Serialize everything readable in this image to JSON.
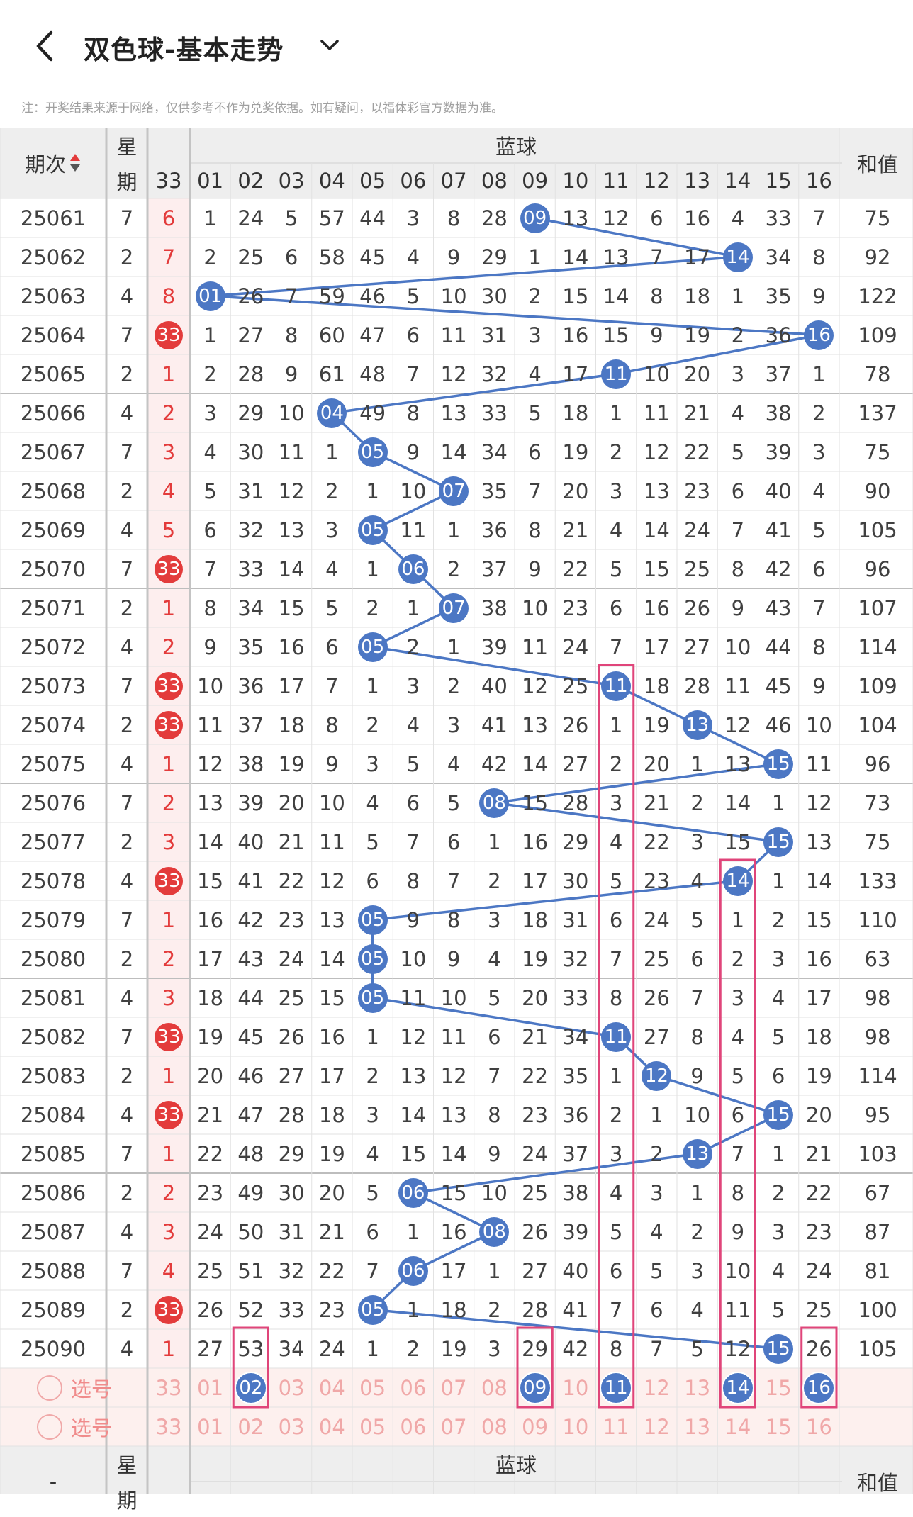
{
  "app": {
    "title": "双色球-基本走势",
    "note": "注：开奖结果来源于网络，仅供参考不作为兑奖依据。如有疑问，以福体彩官方数据为准。"
  },
  "table": {
    "header": {
      "period": "期次",
      "week_top": "星",
      "week_bottom": "期",
      "group": "蓝球",
      "red_col": "33",
      "cols": [
        "01",
        "02",
        "03",
        "04",
        "05",
        "06",
        "07",
        "08",
        "09",
        "10",
        "11",
        "12",
        "13",
        "14",
        "15",
        "16"
      ],
      "sum": "和值"
    },
    "rows": [
      {
        "p": "25061",
        "w": "7",
        "r": "6",
        "rball": false,
        "vals": [
          "1",
          "24",
          "5",
          "57",
          "44",
          "3",
          "8",
          "28",
          "09",
          "13",
          "12",
          "6",
          "16",
          "4",
          "33",
          "7"
        ],
        "hit": 9,
        "sum": "75"
      },
      {
        "p": "25062",
        "w": "2",
        "r": "7",
        "rball": false,
        "vals": [
          "2",
          "25",
          "6",
          "58",
          "45",
          "4",
          "9",
          "29",
          "1",
          "14",
          "13",
          "7",
          "17",
          "14",
          "34",
          "8"
        ],
        "hit": 14,
        "sum": "92"
      },
      {
        "p": "25063",
        "w": "4",
        "r": "8",
        "rball": false,
        "vals": [
          "01",
          "26",
          "7",
          "59",
          "46",
          "5",
          "10",
          "30",
          "2",
          "15",
          "14",
          "8",
          "18",
          "1",
          "35",
          "9"
        ],
        "hit": 1,
        "sum": "122"
      },
      {
        "p": "25064",
        "w": "7",
        "r": "33",
        "rball": true,
        "vals": [
          "1",
          "27",
          "8",
          "60",
          "47",
          "6",
          "11",
          "31",
          "3",
          "16",
          "15",
          "9",
          "19",
          "2",
          "36",
          "16"
        ],
        "hit": 16,
        "sum": "109"
      },
      {
        "p": "25065",
        "w": "2",
        "r": "1",
        "rball": false,
        "vals": [
          "2",
          "28",
          "9",
          "61",
          "48",
          "7",
          "12",
          "32",
          "4",
          "17",
          "11",
          "10",
          "20",
          "3",
          "37",
          "1"
        ],
        "hit": 11,
        "sum": "78"
      },
      {
        "p": "25066",
        "w": "4",
        "r": "2",
        "rball": false,
        "vals": [
          "3",
          "29",
          "10",
          "04",
          "49",
          "8",
          "13",
          "33",
          "5",
          "18",
          "1",
          "11",
          "21",
          "4",
          "38",
          "2"
        ],
        "hit": 4,
        "sum": "137"
      },
      {
        "p": "25067",
        "w": "7",
        "r": "3",
        "rball": false,
        "vals": [
          "4",
          "30",
          "11",
          "1",
          "05",
          "9",
          "14",
          "34",
          "6",
          "19",
          "2",
          "12",
          "22",
          "5",
          "39",
          "3"
        ],
        "hit": 5,
        "sum": "75"
      },
      {
        "p": "25068",
        "w": "2",
        "r": "4",
        "rball": false,
        "vals": [
          "5",
          "31",
          "12",
          "2",
          "1",
          "10",
          "07",
          "35",
          "7",
          "20",
          "3",
          "13",
          "23",
          "6",
          "40",
          "4"
        ],
        "hit": 7,
        "sum": "90"
      },
      {
        "p": "25069",
        "w": "4",
        "r": "5",
        "rball": false,
        "vals": [
          "6",
          "32",
          "13",
          "3",
          "05",
          "11",
          "1",
          "36",
          "8",
          "21",
          "4",
          "14",
          "24",
          "7",
          "41",
          "5"
        ],
        "hit": 5,
        "sum": "105"
      },
      {
        "p": "25070",
        "w": "7",
        "r": "33",
        "rball": true,
        "vals": [
          "7",
          "33",
          "14",
          "4",
          "1",
          "06",
          "2",
          "37",
          "9",
          "22",
          "5",
          "15",
          "25",
          "8",
          "42",
          "6"
        ],
        "hit": 6,
        "sum": "96"
      },
      {
        "p": "25071",
        "w": "2",
        "r": "1",
        "rball": false,
        "vals": [
          "8",
          "34",
          "15",
          "5",
          "2",
          "1",
          "07",
          "38",
          "10",
          "23",
          "6",
          "16",
          "26",
          "9",
          "43",
          "7"
        ],
        "hit": 7,
        "sum": "107"
      },
      {
        "p": "25072",
        "w": "4",
        "r": "2",
        "rball": false,
        "vals": [
          "9",
          "35",
          "16",
          "6",
          "05",
          "2",
          "1",
          "39",
          "11",
          "24",
          "7",
          "17",
          "27",
          "10",
          "44",
          "8"
        ],
        "hit": 5,
        "sum": "114"
      },
      {
        "p": "25073",
        "w": "7",
        "r": "33",
        "rball": true,
        "vals": [
          "10",
          "36",
          "17",
          "7",
          "1",
          "3",
          "2",
          "40",
          "12",
          "25",
          "11",
          "18",
          "28",
          "11",
          "45",
          "9"
        ],
        "hit": 11,
        "sum": "109"
      },
      {
        "p": "25074",
        "w": "2",
        "r": "33",
        "rball": true,
        "vals": [
          "11",
          "37",
          "18",
          "8",
          "2",
          "4",
          "3",
          "41",
          "13",
          "26",
          "1",
          "19",
          "13",
          "12",
          "46",
          "10"
        ],
        "hit": 13,
        "sum": "104"
      },
      {
        "p": "25075",
        "w": "4",
        "r": "1",
        "rball": false,
        "vals": [
          "12",
          "38",
          "19",
          "9",
          "3",
          "5",
          "4",
          "42",
          "14",
          "27",
          "2",
          "20",
          "1",
          "13",
          "15",
          "11"
        ],
        "hit": 15,
        "sum": "96"
      },
      {
        "p": "25076",
        "w": "7",
        "r": "2",
        "rball": false,
        "vals": [
          "13",
          "39",
          "20",
          "10",
          "4",
          "6",
          "5",
          "08",
          "15",
          "28",
          "3",
          "21",
          "2",
          "14",
          "1",
          "12"
        ],
        "hit": 8,
        "sum": "73"
      },
      {
        "p": "25077",
        "w": "2",
        "r": "3",
        "rball": false,
        "vals": [
          "14",
          "40",
          "21",
          "11",
          "5",
          "7",
          "6",
          "1",
          "16",
          "29",
          "4",
          "22",
          "3",
          "15",
          "15",
          "13"
        ],
        "hit": 15,
        "sum": "75"
      },
      {
        "p": "25078",
        "w": "4",
        "r": "33",
        "rball": true,
        "vals": [
          "15",
          "41",
          "22",
          "12",
          "6",
          "8",
          "7",
          "2",
          "17",
          "30",
          "5",
          "23",
          "4",
          "14",
          "1",
          "14"
        ],
        "hit": 14,
        "sum": "133"
      },
      {
        "p": "25079",
        "w": "7",
        "r": "1",
        "rball": false,
        "vals": [
          "16",
          "42",
          "23",
          "13",
          "05",
          "9",
          "8",
          "3",
          "18",
          "31",
          "6",
          "24",
          "5",
          "1",
          "2",
          "15"
        ],
        "hit": 5,
        "sum": "110"
      },
      {
        "p": "25080",
        "w": "2",
        "r": "2",
        "rball": false,
        "vals": [
          "17",
          "43",
          "24",
          "14",
          "05",
          "10",
          "9",
          "4",
          "19",
          "32",
          "7",
          "25",
          "6",
          "2",
          "3",
          "16"
        ],
        "hit": 5,
        "sum": "63"
      },
      {
        "p": "25081",
        "w": "4",
        "r": "3",
        "rball": false,
        "vals": [
          "18",
          "44",
          "25",
          "15",
          "05",
          "11",
          "10",
          "5",
          "20",
          "33",
          "8",
          "26",
          "7",
          "3",
          "4",
          "17"
        ],
        "hit": 5,
        "sum": "98"
      },
      {
        "p": "25082",
        "w": "7",
        "r": "33",
        "rball": true,
        "vals": [
          "19",
          "45",
          "26",
          "16",
          "1",
          "12",
          "11",
          "6",
          "21",
          "34",
          "11",
          "27",
          "8",
          "4",
          "5",
          "18"
        ],
        "hit": 11,
        "sum": "98"
      },
      {
        "p": "25083",
        "w": "2",
        "r": "1",
        "rball": false,
        "vals": [
          "20",
          "46",
          "27",
          "17",
          "2",
          "13",
          "12",
          "7",
          "22",
          "35",
          "1",
          "12",
          "9",
          "5",
          "6",
          "19"
        ],
        "hit": 12,
        "sum": "114"
      },
      {
        "p": "25084",
        "w": "4",
        "r": "33",
        "rball": true,
        "vals": [
          "21",
          "47",
          "28",
          "18",
          "3",
          "14",
          "13",
          "8",
          "23",
          "36",
          "2",
          "1",
          "10",
          "6",
          "15",
          "20"
        ],
        "hit": 15,
        "sum": "95"
      },
      {
        "p": "25085",
        "w": "7",
        "r": "1",
        "rball": false,
        "vals": [
          "22",
          "48",
          "29",
          "19",
          "4",
          "15",
          "14",
          "9",
          "24",
          "37",
          "3",
          "2",
          "13",
          "7",
          "1",
          "21"
        ],
        "hit": 13,
        "sum": "103"
      },
      {
        "p": "25086",
        "w": "2",
        "r": "2",
        "rball": false,
        "vals": [
          "23",
          "49",
          "30",
          "20",
          "5",
          "06",
          "15",
          "10",
          "25",
          "38",
          "4",
          "3",
          "1",
          "8",
          "2",
          "22"
        ],
        "hit": 6,
        "sum": "67"
      },
      {
        "p": "25087",
        "w": "4",
        "r": "3",
        "rball": false,
        "vals": [
          "24",
          "50",
          "31",
          "21",
          "6",
          "1",
          "16",
          "08",
          "26",
          "39",
          "5",
          "4",
          "2",
          "9",
          "3",
          "23"
        ],
        "hit": 8,
        "sum": "87"
      },
      {
        "p": "25088",
        "w": "7",
        "r": "4",
        "rball": false,
        "vals": [
          "25",
          "51",
          "32",
          "22",
          "7",
          "06",
          "17",
          "1",
          "27",
          "40",
          "6",
          "5",
          "3",
          "10",
          "4",
          "24"
        ],
        "hit": 6,
        "sum": "81"
      },
      {
        "p": "25089",
        "w": "2",
        "r": "33",
        "rball": true,
        "vals": [
          "26",
          "52",
          "33",
          "23",
          "05",
          "1",
          "18",
          "2",
          "28",
          "41",
          "7",
          "6",
          "4",
          "11",
          "5",
          "25"
        ],
        "hit": 5,
        "sum": "100"
      },
      {
        "p": "25090",
        "w": "4",
        "r": "1",
        "rball": false,
        "vals": [
          "27",
          "53",
          "34",
          "24",
          "1",
          "2",
          "19",
          "3",
          "29",
          "42",
          "8",
          "7",
          "5",
          "12",
          "15",
          "26"
        ],
        "hit": 15,
        "sum": "105"
      }
    ],
    "select_label": "选号",
    "select_red": "33",
    "select_cols": [
      "01",
      "02",
      "03",
      "04",
      "05",
      "06",
      "07",
      "08",
      "09",
      "10",
      "11",
      "12",
      "13",
      "14",
      "15",
      "16"
    ],
    "selected": [
      2,
      9,
      11,
      14,
      16
    ],
    "footer": {
      "period": "-",
      "week_top": "星",
      "week_bottom": "期",
      "group": "蓝球",
      "sum": "和值"
    }
  },
  "colors": {
    "blue_ball": "#4c77c4",
    "red_ball": "#e33b3b",
    "highlight_box": "#e0457a",
    "select_text": "#f0a8a8",
    "select_bg": "#fdf0ee"
  }
}
